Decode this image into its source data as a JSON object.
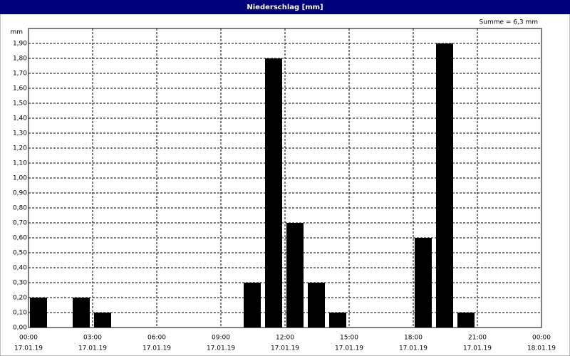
{
  "chart_data": {
    "type": "bar",
    "title": "Niederschlag [mm]",
    "annotation": "Summe = 6,3 mm",
    "y_label": "mm",
    "x": [
      0,
      2,
      3,
      10,
      11,
      12,
      13,
      14,
      18,
      19,
      20
    ],
    "values": [
      0.2,
      0.2,
      0.1,
      0.3,
      1.8,
      0.7,
      0.3,
      0.1,
      0.6,
      1.9,
      0.1
    ],
    "color": "#000000",
    "xlim": [
      0,
      24
    ],
    "xticks": [
      {
        "value": 0,
        "label": "00:00",
        "date": "17.01.19"
      },
      {
        "value": 3,
        "label": "03:00",
        "date": "17.01.19"
      },
      {
        "value": 6,
        "label": "06:00",
        "date": "17.01.19"
      },
      {
        "value": 9,
        "label": "09:00",
        "date": "17.01.19"
      },
      {
        "value": 12,
        "label": "12:00",
        "date": "17.01.19"
      },
      {
        "value": 15,
        "label": "15:00",
        "date": "17.01.19"
      },
      {
        "value": 18,
        "label": "18:00",
        "date": "17.01.19"
      },
      {
        "value": 21,
        "label": "21:00",
        "date": "17.01.19"
      },
      {
        "value": 24,
        "label": "00:00",
        "date": "18.01.19"
      }
    ],
    "ylim": [
      0,
      2
    ],
    "yticks": [
      {
        "value": 0,
        "label": "0,00"
      },
      {
        "value": 0.1,
        "label": "0,10"
      },
      {
        "value": 0.2,
        "label": "0,20"
      },
      {
        "value": 0.3,
        "label": "0,30"
      },
      {
        "value": 0.4,
        "label": "0,40"
      },
      {
        "value": 0.5,
        "label": "0,50"
      },
      {
        "value": 0.6,
        "label": "0,60"
      },
      {
        "value": 0.7,
        "label": "0,70"
      },
      {
        "value": 0.8,
        "label": "0,80"
      },
      {
        "value": 0.9,
        "label": "0,90"
      },
      {
        "value": 1.0,
        "label": "1,00"
      },
      {
        "value": 1.1,
        "label": "1,10"
      },
      {
        "value": 1.2,
        "label": "1,20"
      },
      {
        "value": 1.3,
        "label": "1,30"
      },
      {
        "value": 1.4,
        "label": "1,40"
      },
      {
        "value": 1.5,
        "label": "1,50"
      },
      {
        "value": 1.6,
        "label": "1,60"
      },
      {
        "value": 1.7,
        "label": "1,70"
      },
      {
        "value": 1.8,
        "label": "1,80"
      },
      {
        "value": 1.9,
        "label": "1,90"
      }
    ],
    "grid": true
  }
}
